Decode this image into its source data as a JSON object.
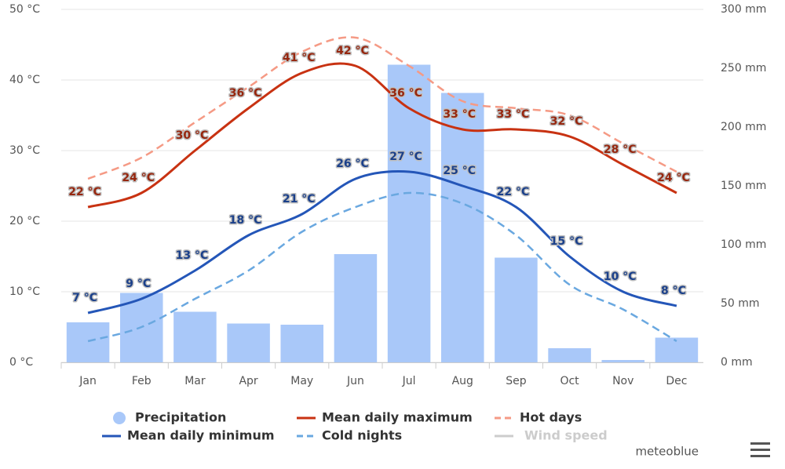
{
  "chart_data": {
    "type": "combo",
    "categories": [
      "Jan",
      "Feb",
      "Mar",
      "Apr",
      "May",
      "Jun",
      "Jul",
      "Aug",
      "Sep",
      "Oct",
      "Nov",
      "Dec"
    ],
    "series": [
      {
        "name": "Precipitation",
        "style": "bar",
        "axis": "y2",
        "color": "#a9c8f9",
        "values": [
          34,
          59,
          43,
          33,
          32,
          92,
          253,
          229,
          89,
          12,
          2,
          21
        ]
      },
      {
        "name": "Mean daily maximum",
        "style": "line",
        "color": "#c83212",
        "values": [
          22,
          24,
          30,
          36,
          41,
          42,
          36,
          33,
          33,
          32,
          28,
          24
        ],
        "value_labels": [
          "22 °C",
          "24 °C",
          "30 °C",
          "36 °C",
          "41 °C",
          "42 °C",
          "36 °C",
          "33 °C",
          "33 °C",
          "32 °C",
          "28 °C",
          "24 °C"
        ]
      },
      {
        "name": "Hot days",
        "style": "dashed",
        "color": "#f59a85",
        "values": [
          26,
          29,
          34,
          39,
          44,
          46,
          42,
          37,
          36,
          35,
          31,
          27
        ]
      },
      {
        "name": "Mean daily minimum",
        "style": "line",
        "color": "#2456b8",
        "values": [
          7,
          9,
          13,
          18,
          21,
          26,
          27,
          25,
          22,
          15,
          10,
          8
        ],
        "value_labels": [
          "7 °C",
          "9 °C",
          "13 °C",
          "18 °C",
          "21 °C",
          "26 °C",
          "27 °C",
          "25 °C",
          "22 °C",
          "15 °C",
          "10 °C",
          "8 °C"
        ]
      },
      {
        "name": "Cold nights",
        "style": "dashed",
        "color": "#6aa8e0",
        "values": [
          3,
          5,
          9,
          13,
          18.5,
          22,
          24,
          22.5,
          18,
          11,
          7.5,
          3
        ]
      }
    ],
    "hidden_series": [
      {
        "name": "Wind speed",
        "color": "#cccccc"
      }
    ],
    "ylim": [
      0,
      50
    ],
    "yticks": [
      {
        "value": 0,
        "label": "0 °C"
      },
      {
        "value": 10,
        "label": "10 °C"
      },
      {
        "value": 20,
        "label": "20 °C"
      },
      {
        "value": 30,
        "label": "30 °C"
      },
      {
        "value": 40,
        "label": "40 °C"
      },
      {
        "value": 50,
        "label": "50 °C"
      }
    ],
    "y2lim": [
      0,
      300
    ],
    "y2ticks": [
      {
        "value": 0,
        "label": "0 mm"
      },
      {
        "value": 50,
        "label": "50 mm"
      },
      {
        "value": 100,
        "label": "100 mm"
      },
      {
        "value": 150,
        "label": "150 mm"
      },
      {
        "value": 200,
        "label": "200 mm"
      },
      {
        "value": 250,
        "label": "250 mm"
      },
      {
        "value": 300,
        "label": "300 mm"
      }
    ],
    "grid": true,
    "credit": "meteoblue"
  }
}
